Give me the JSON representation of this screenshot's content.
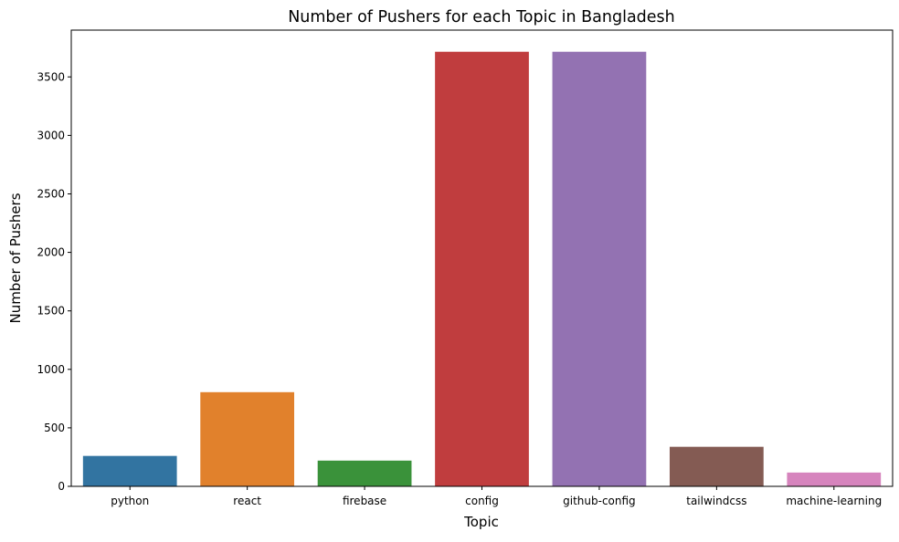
{
  "chart_data": {
    "type": "bar",
    "title": "Number of Pushers for each Topic in Bangladesh",
    "xlabel": "Topic",
    "ylabel": "Number of Pushers",
    "categories": [
      "python",
      "react",
      "firebase",
      "config",
      "github-config",
      "tailwindcss",
      "machine-learning"
    ],
    "values": [
      260,
      805,
      220,
      3715,
      3715,
      338,
      118
    ],
    "colors": [
      "#3274a1",
      "#e1812c",
      "#3a923a",
      "#c03d3e",
      "#9372b2",
      "#845b53",
      "#d684bd"
    ],
    "yticks": [
      0,
      500,
      1000,
      1500,
      2000,
      2500,
      3000,
      3500
    ],
    "ylim": [
      0,
      3900
    ],
    "grid": false,
    "legend": "none"
  }
}
